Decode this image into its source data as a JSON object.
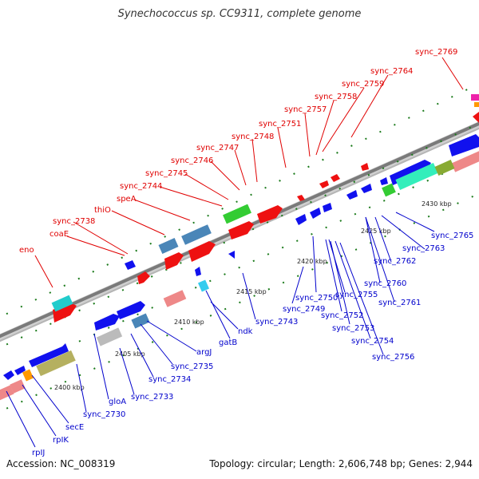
{
  "title": "Synechococcus sp. CC9311, complete genome",
  "footer": {
    "accession": "Accession: NC_008319",
    "stats": "Topology: circular; Length: 2,606,748 bp; Genes: 2,944"
  },
  "colors": {
    "forward_label": "#e00000",
    "reverse_label": "#0000cc",
    "forward_gene": "#ee1111",
    "reverse_gene": "#1111ee",
    "backbone": "#8a8a8a",
    "tick": "#1a7a1a"
  },
  "scale_labels": [
    "2400 kbp",
    "2405 kbp",
    "2410 kbp",
    "2415 kbp",
    "2420 kbp",
    "2425 kbp",
    "2430 kbp"
  ],
  "forward_labels": [
    "eno",
    "coaE",
    "sync_2738",
    "thiO",
    "speA",
    "sync_2744",
    "sync_2745",
    "sync_2746",
    "sync_2747",
    "sync_2748",
    "sync_2751",
    "sync_2757",
    "sync_2758",
    "sync_2759",
    "sync_2764",
    "sync_2769"
  ],
  "reverse_labels": [
    "rpIJ",
    "rpIK",
    "secE",
    "sync_2730",
    "gloA",
    "sync_2733",
    "sync_2734",
    "sync_2735",
    "argJ",
    "gatB",
    "ndk",
    "sync_2743",
    "sync_2749",
    "sync_2750",
    "sync_2752",
    "sync_2753",
    "sync_2754",
    "sync_2755",
    "sync_2756",
    "sync_2760",
    "sync_2761",
    "sync_2762",
    "sync_2763",
    "sync_2765"
  ]
}
